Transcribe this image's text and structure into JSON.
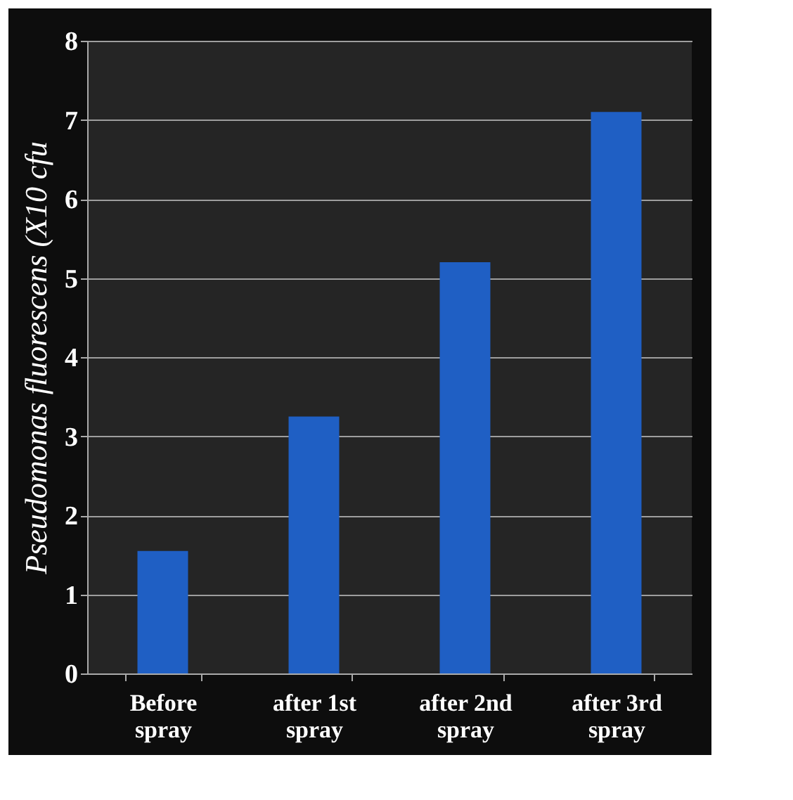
{
  "chart_data": {
    "type": "bar",
    "ylabel": "Pseudomonas fluorescens  (X10 cfu",
    "categories": [
      "Before spray",
      "after 1st spray",
      "after 2nd spray",
      "after 3rd spray"
    ],
    "values": [
      1.55,
      3.25,
      5.2,
      7.1
    ],
    "color": "#1f5fc4",
    "ylim": [
      0,
      8
    ],
    "yticks": [
      0,
      1,
      2,
      3,
      4,
      5,
      6,
      7,
      8
    ],
    "grid": "y"
  }
}
